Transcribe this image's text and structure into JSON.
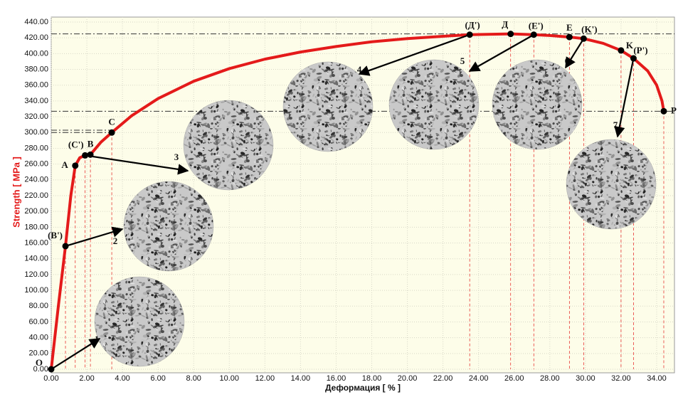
{
  "chart_data": {
    "type": "line",
    "y_label": "Strength [ MPa ]",
    "x_label": "Деформация [ % ]",
    "xlim": [
      0,
      35
    ],
    "ylim": [
      0,
      445
    ],
    "grid": true,
    "xticks": [
      {
        "value": 0,
        "label": "0.00"
      },
      {
        "value": 2,
        "label": "2.00"
      },
      {
        "value": 4,
        "label": "4.00"
      },
      {
        "value": 6,
        "label": "6.00"
      },
      {
        "value": 8,
        "label": "8.00"
      },
      {
        "value": 10,
        "label": "10.00"
      },
      {
        "value": 12,
        "label": "12.00"
      },
      {
        "value": 14,
        "label": "14.00"
      },
      {
        "value": 16,
        "label": "16.00"
      },
      {
        "value": 18,
        "label": "18.00"
      },
      {
        "value": 20,
        "label": "20.00"
      },
      {
        "value": 22,
        "label": "22.00"
      },
      {
        "value": 24,
        "label": "24.00"
      },
      {
        "value": 26,
        "label": "26.00"
      },
      {
        "value": 28,
        "label": "28.00"
      },
      {
        "value": 30,
        "label": "30.00"
      },
      {
        "value": 32,
        "label": "32.00"
      },
      {
        "value": 34,
        "label": "34.00"
      }
    ],
    "yticks": [
      {
        "value": 0,
        "label": "0.00"
      },
      {
        "value": 20,
        "label": "20.00"
      },
      {
        "value": 40,
        "label": "40.00"
      },
      {
        "value": 60,
        "label": "60.00"
      },
      {
        "value": 80,
        "label": "80.00"
      },
      {
        "value": 100,
        "label": "100.00"
      },
      {
        "value": 120,
        "label": "120.00"
      },
      {
        "value": 140,
        "label": "140.00"
      },
      {
        "value": 160,
        "label": "160.00"
      },
      {
        "value": 180,
        "label": "180.00"
      },
      {
        "value": 200,
        "label": "200.00"
      },
      {
        "value": 220,
        "label": "220.00"
      },
      {
        "value": 240,
        "label": "240.00"
      },
      {
        "value": 260,
        "label": "260.00"
      },
      {
        "value": 280,
        "label": "280.00"
      },
      {
        "value": 300,
        "label": "300.00"
      },
      {
        "value": 320,
        "label": "320.00"
      },
      {
        "value": 340,
        "label": "340.00"
      },
      {
        "value": 360,
        "label": "360.00"
      },
      {
        "value": 380,
        "label": "380.00"
      },
      {
        "value": 400,
        "label": "400.00"
      },
      {
        "value": 420,
        "label": "420.00"
      },
      {
        "value": 440,
        "label": "440.00"
      }
    ],
    "curve": {
      "color": "#e41a1a",
      "x": [
        0,
        0.4,
        0.8,
        1.1,
        1.35,
        1.6,
        1.9,
        2.2,
        2.8,
        3.4,
        4.5,
        6,
        8,
        10,
        12,
        14,
        16,
        18,
        20,
        22,
        23.5,
        25.8,
        27.1,
        28,
        29.1,
        29.9,
        31,
        32,
        32.7,
        33.5,
        34,
        34.3,
        34.4
      ],
      "y": [
        0,
        80,
        156,
        220,
        258,
        268,
        271,
        272,
        288,
        300,
        321,
        343,
        365,
        381,
        393,
        402,
        409,
        415,
        419,
        422,
        424,
        425,
        424,
        423,
        421,
        419,
        413,
        404,
        394,
        378,
        360,
        340,
        327
      ]
    },
    "reference_levels": [
      425,
      327
    ],
    "short_reference_levels": [
      303,
      300
    ],
    "points": [
      {
        "label": "O",
        "x": 0,
        "y": 0
      },
      {
        "label": "(B')",
        "x": 0.8,
        "y": 156
      },
      {
        "label": "A",
        "x": 1.35,
        "y": 258
      },
      {
        "label": "(C')",
        "x": 1.9,
        "y": 271
      },
      {
        "label": "B",
        "x": 2.2,
        "y": 272
      },
      {
        "label": "C",
        "x": 3.4,
        "y": 300
      },
      {
        "label": "(Д')",
        "x": 23.5,
        "y": 424
      },
      {
        "label": "Д",
        "x": 25.8,
        "y": 425
      },
      {
        "label": "(E')",
        "x": 27.1,
        "y": 424
      },
      {
        "label": "E",
        "x": 29.1,
        "y": 421
      },
      {
        "label": "(K')",
        "x": 29.9,
        "y": 419
      },
      {
        "label": "K",
        "x": 32,
        "y": 404
      },
      {
        "label": "(P')",
        "x": 32.7,
        "y": 394
      },
      {
        "label": "P",
        "x": 34.4,
        "y": 327
      }
    ],
    "micrographs": [
      "1",
      "2",
      "3",
      "4",
      "5",
      "6",
      "7"
    ]
  }
}
